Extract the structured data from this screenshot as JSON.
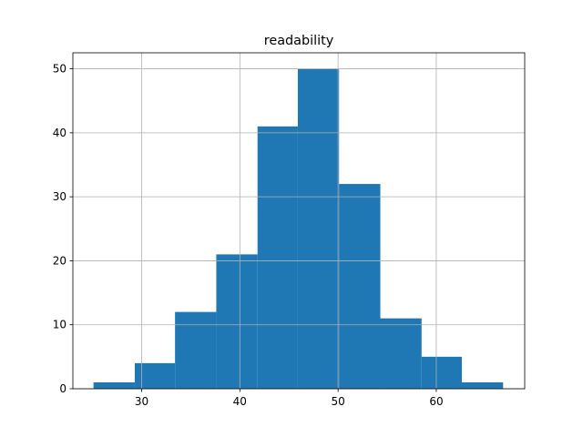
{
  "chart_data": {
    "type": "histogram",
    "title": "readability",
    "bins": [
      25.1,
      29.3,
      33.4,
      37.6,
      41.8,
      45.9,
      50.1,
      54.3,
      58.5,
      62.6,
      66.8
    ],
    "values": [
      1,
      4,
      12,
      21,
      41,
      50,
      32,
      11,
      5,
      1
    ],
    "color": "#1f77b4",
    "xlim": [
      23,
      69
    ],
    "xticks": [
      30,
      40,
      50,
      60
    ],
    "ylim": [
      0,
      52.5
    ],
    "yticks": [
      0,
      10,
      20,
      30,
      40,
      50
    ],
    "grid": true
  }
}
